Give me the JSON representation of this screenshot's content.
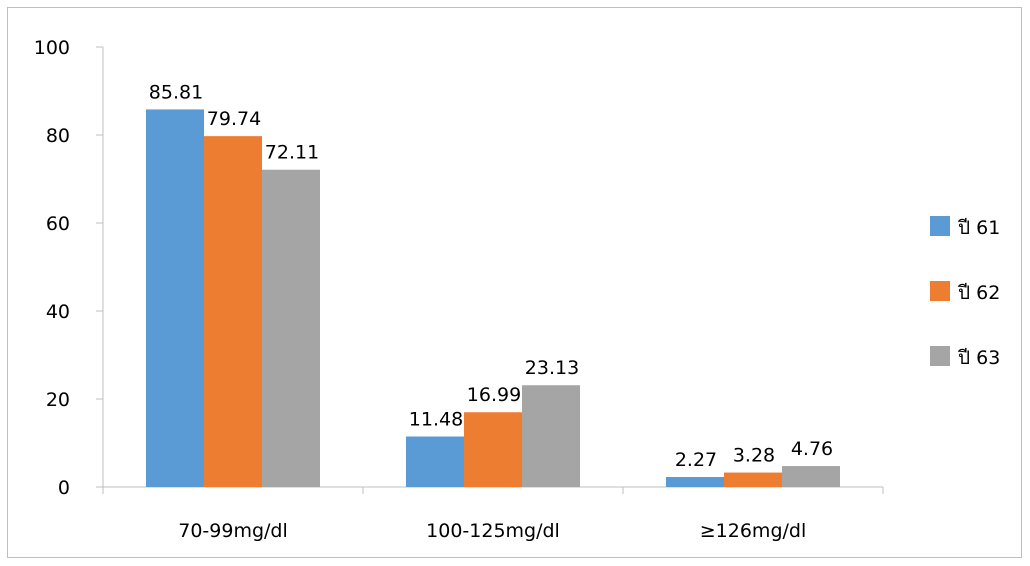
{
  "chart_data": {
    "type": "bar",
    "categories": [
      "70-99mg/dl",
      "100-125mg/dl",
      "≥126mg/dl"
    ],
    "series": [
      {
        "name": "ปี 61",
        "values": [
          85.81,
          11.48,
          2.27
        ],
        "color": "#5b9bd5"
      },
      {
        "name": "ปี 62",
        "values": [
          79.74,
          16.99,
          3.28
        ],
        "color": "#ed7d31"
      },
      {
        "name": "ปี 63",
        "values": [
          72.11,
          23.13,
          4.76
        ],
        "color": "#a5a5a5"
      }
    ],
    "data_labels": [
      [
        "85.81",
        "11.48",
        "2.27"
      ],
      [
        "79.74",
        "16.99",
        "3.28"
      ],
      [
        "72.11",
        "23.13",
        "4.76"
      ]
    ],
    "y_ticks": [
      "0",
      "20",
      "40",
      "60",
      "80",
      "100"
    ],
    "ylim": [
      0,
      100
    ],
    "grid": false,
    "legend_position": "right",
    "title": "",
    "xlabel": "",
    "ylabel": ""
  }
}
